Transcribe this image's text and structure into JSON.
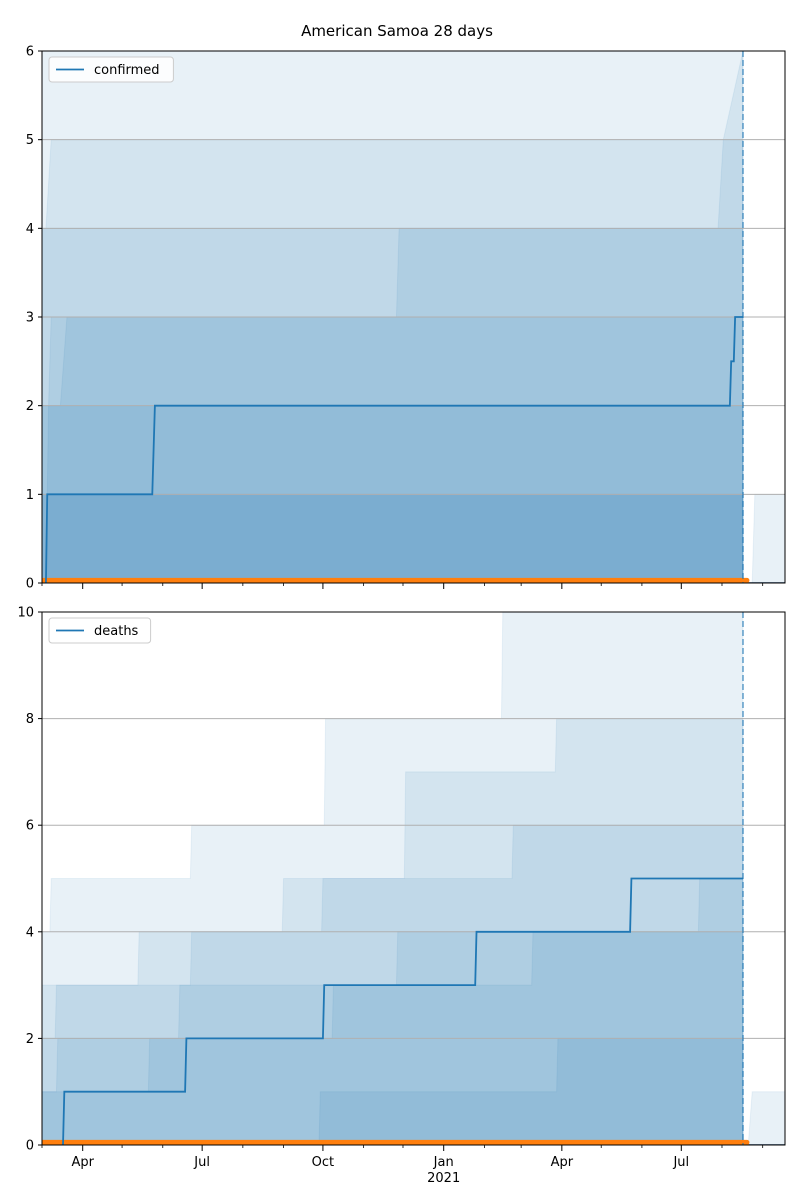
{
  "colors": {
    "line": "#1f77b4",
    "band": "#1f77b4",
    "observed": "#ff7f0e",
    "grid": "#b0b0b0",
    "axis": "#000000"
  },
  "chart_data": [
    {
      "type": "line",
      "title": "American Samoa 28 days",
      "ylim": [
        0,
        6
      ],
      "yticks": [
        0,
        1,
        2,
        3,
        4,
        5,
        6
      ],
      "grid": "horizontal",
      "legend_position": "top-left",
      "vline_date": "2021-08-17",
      "series": [
        {
          "name": "confirmed",
          "x": [
            "2020-03-04",
            "2020-03-05",
            "2020-05-24",
            "2020-05-25",
            "2020-05-26",
            "2021-08-07",
            "2021-08-08",
            "2021-08-10",
            "2021-08-11",
            "2021-08-17"
          ],
          "values": [
            0,
            1,
            1,
            1.5,
            2,
            2,
            2.5,
            2.5,
            3,
            3
          ]
        }
      ],
      "observed": {
        "x": [
          "2020-03-01",
          "2021-08-20"
        ],
        "values": [
          0.03,
          0.03
        ]
      },
      "forecast_line": {
        "x": [
          "2021-08-17",
          "2021-09-18"
        ],
        "values": [
          0,
          0
        ]
      },
      "bands": [
        {
          "opacity": 0.1,
          "x": [
            "2020-03-01",
            "2020-03-24",
            "2020-03-28",
            "2021-07-29",
            "2021-08-02",
            "2021-08-17"
          ],
          "lower": [
            0,
            0,
            0,
            0,
            0,
            0
          ],
          "upper": [
            6,
            6,
            6,
            6,
            6,
            6
          ]
        },
        {
          "opacity": 0.1,
          "x": [
            "2020-03-01",
            "2020-03-24",
            "2020-03-28",
            "2021-07-29",
            "2021-08-02",
            "2021-08-17"
          ],
          "lower": [
            0,
            0,
            0,
            0,
            0,
            0
          ],
          "upper": [
            4,
            4,
            4,
            4,
            5,
            6
          ]
        },
        {
          "opacity": 0.1,
          "x": [
            "2020-03-01",
            "2020-03-04",
            "2020-03-08",
            "2020-08-12",
            "2020-08-14",
            "2021-08-17"
          ],
          "lower": [
            0,
            0,
            0,
            0,
            0,
            0
          ],
          "upper": [
            4,
            4,
            5,
            5,
            5,
            5
          ]
        },
        {
          "opacity": 0.1,
          "x": [
            "2020-03-01",
            "2020-03-06",
            "2020-03-08",
            "2020-11-26",
            "2020-11-28",
            "2021-08-17"
          ],
          "lower": [
            0,
            0,
            0,
            0,
            0,
            0
          ],
          "upper": [
            2,
            2,
            3,
            3,
            4,
            4
          ]
        },
        {
          "opacity": 0.1,
          "x": [
            "2020-03-01",
            "2020-03-15",
            "2020-03-20",
            "2021-08-17"
          ],
          "lower": [
            0,
            0,
            0,
            0
          ],
          "upper": [
            2,
            2,
            3,
            3
          ]
        },
        {
          "opacity": 0.1,
          "x": [
            "2020-03-01",
            "2020-03-04",
            "2020-03-06",
            "2021-08-17"
          ],
          "lower": [
            0,
            0,
            0,
            0
          ],
          "upper": [
            0,
            0,
            2,
            2
          ]
        },
        {
          "opacity": 0.1,
          "x": [
            "2020-03-01",
            "2020-05-26",
            "2020-06-02",
            "2021-08-17"
          ],
          "lower": [
            0,
            0,
            0,
            0
          ],
          "upper": [
            1,
            1,
            1,
            1
          ]
        },
        {
          "opacity": 0.1,
          "x": [
            "2020-03-01",
            "2020-05-28",
            "2020-06-01",
            "2021-08-17"
          ],
          "lower": [
            0,
            0,
            0,
            0
          ],
          "upper": [
            1,
            1,
            1,
            1
          ]
        },
        {
          "opacity": 0.1,
          "x": [
            "2021-08-24",
            "2021-08-26",
            "2021-09-18"
          ],
          "lower": [
            0,
            0,
            0
          ],
          "upper": [
            0,
            1,
            1
          ]
        }
      ]
    },
    {
      "type": "line",
      "ylim": [
        0,
        10
      ],
      "yticks": [
        0,
        2,
        4,
        6,
        8,
        10
      ],
      "grid": "horizontal",
      "legend_position": "top-left",
      "vline_date": "2021-08-17",
      "xlim": [
        "2020-03-01",
        "2021-09-18"
      ],
      "xticks": [
        "2020-04-01",
        "2020-07-01",
        "2020-10-01",
        "2021-01-01",
        "2021-04-01",
        "2021-07-01"
      ],
      "xtick_labels": [
        "Apr",
        "Jul",
        "Oct",
        "Jan",
        "Apr",
        "Jul"
      ],
      "year_label": "2021",
      "minor_xticks": [
        "2020-03-01",
        "2020-05-01",
        "2020-06-01",
        "2020-08-01",
        "2020-09-01",
        "2020-11-01",
        "2020-12-01",
        "2021-02-01",
        "2021-03-01",
        "2021-05-01",
        "2021-06-01",
        "2021-08-01",
        "2021-09-01"
      ],
      "series": [
        {
          "name": "deaths",
          "x": [
            "2020-03-17",
            "2020-03-18",
            "2020-06-18",
            "2020-06-19",
            "2020-10-01",
            "2020-10-02",
            "2021-01-25",
            "2021-01-26",
            "2021-05-23",
            "2021-05-24",
            "2021-08-17"
          ],
          "values": [
            0,
            1,
            1,
            2,
            2,
            3,
            3,
            4,
            4,
            5,
            5
          ]
        }
      ],
      "observed": {
        "x": [
          "2020-03-01",
          "2021-08-20"
        ],
        "values": [
          0.05,
          0.05
        ]
      },
      "forecast_line": {
        "x": [
          "2021-08-17",
          "2021-09-18"
        ],
        "values": [
          0,
          0
        ]
      },
      "bands": [
        {
          "opacity": 0.1,
          "x": [
            "2020-03-01",
            "2020-03-07",
            "2020-03-08",
            "2020-06-22",
            "2020-06-23",
            "2020-10-02",
            "2020-10-03",
            "2021-02-14",
            "2021-02-15",
            "2021-08-17"
          ],
          "lower": [
            0,
            0,
            0,
            0,
            0,
            0,
            0,
            0,
            0,
            0
          ],
          "upper": [
            4,
            4,
            5,
            5,
            6,
            6,
            8,
            8,
            10,
            10
          ]
        },
        {
          "opacity": 0.1,
          "x": [
            "2020-03-01",
            "2020-06-22",
            "2020-06-23",
            "2020-09-30",
            "2020-10-01",
            "2020-12-02",
            "2020-12-03",
            "2021-03-27",
            "2021-03-28",
            "2021-08-17"
          ],
          "lower": [
            0,
            0,
            0,
            0,
            0,
            0,
            0,
            0,
            0,
            0
          ],
          "upper": [
            3,
            3,
            4,
            4,
            5,
            5,
            7,
            7,
            8,
            8
          ]
        },
        {
          "opacity": 0.1,
          "x": [
            "2020-03-01",
            "2020-03-11",
            "2020-03-12",
            "2020-05-13",
            "2020-05-14",
            "2020-08-31",
            "2020-09-01",
            "2021-02-22",
            "2021-02-23",
            "2021-08-17"
          ],
          "lower": [
            0,
            0,
            0,
            0,
            0,
            0,
            0,
            0,
            0,
            0
          ],
          "upper": [
            2,
            2,
            3,
            3,
            4,
            4,
            5,
            5,
            6,
            6
          ]
        },
        {
          "opacity": 0.1,
          "x": [
            "2020-03-01",
            "2020-03-12",
            "2020-03-13",
            "2020-06-13",
            "2020-06-14",
            "2020-11-26",
            "2020-11-27",
            "2021-07-14",
            "2021-07-15",
            "2021-08-17"
          ],
          "lower": [
            0,
            0,
            0,
            0,
            0,
            0,
            0,
            0,
            0,
            0
          ],
          "upper": [
            1,
            1,
            2,
            2,
            3,
            3,
            4,
            4,
            5,
            5
          ]
        },
        {
          "opacity": 0.1,
          "x": [
            "2020-03-01",
            "2020-05-21",
            "2020-05-22",
            "2020-10-08",
            "2020-10-09",
            "2021-03-09",
            "2021-03-10",
            "2021-08-17"
          ],
          "lower": [
            0,
            0,
            0,
            0,
            0,
            0,
            0,
            0
          ],
          "upper": [
            1,
            1,
            2,
            2,
            3,
            3,
            4,
            4
          ]
        },
        {
          "opacity": 0.1,
          "x": [
            "2020-03-01",
            "2020-09-28",
            "2020-09-29",
            "2021-03-28",
            "2021-03-29",
            "2021-08-17"
          ],
          "lower": [
            0,
            0,
            0,
            0,
            0,
            0
          ],
          "upper": [
            0,
            0,
            1,
            1,
            2,
            2
          ]
        },
        {
          "opacity": 0.1,
          "x": [
            "2021-08-21",
            "2021-08-24",
            "2021-09-18"
          ],
          "lower": [
            0,
            0,
            0
          ],
          "upper": [
            0,
            1,
            1
          ]
        }
      ]
    }
  ]
}
